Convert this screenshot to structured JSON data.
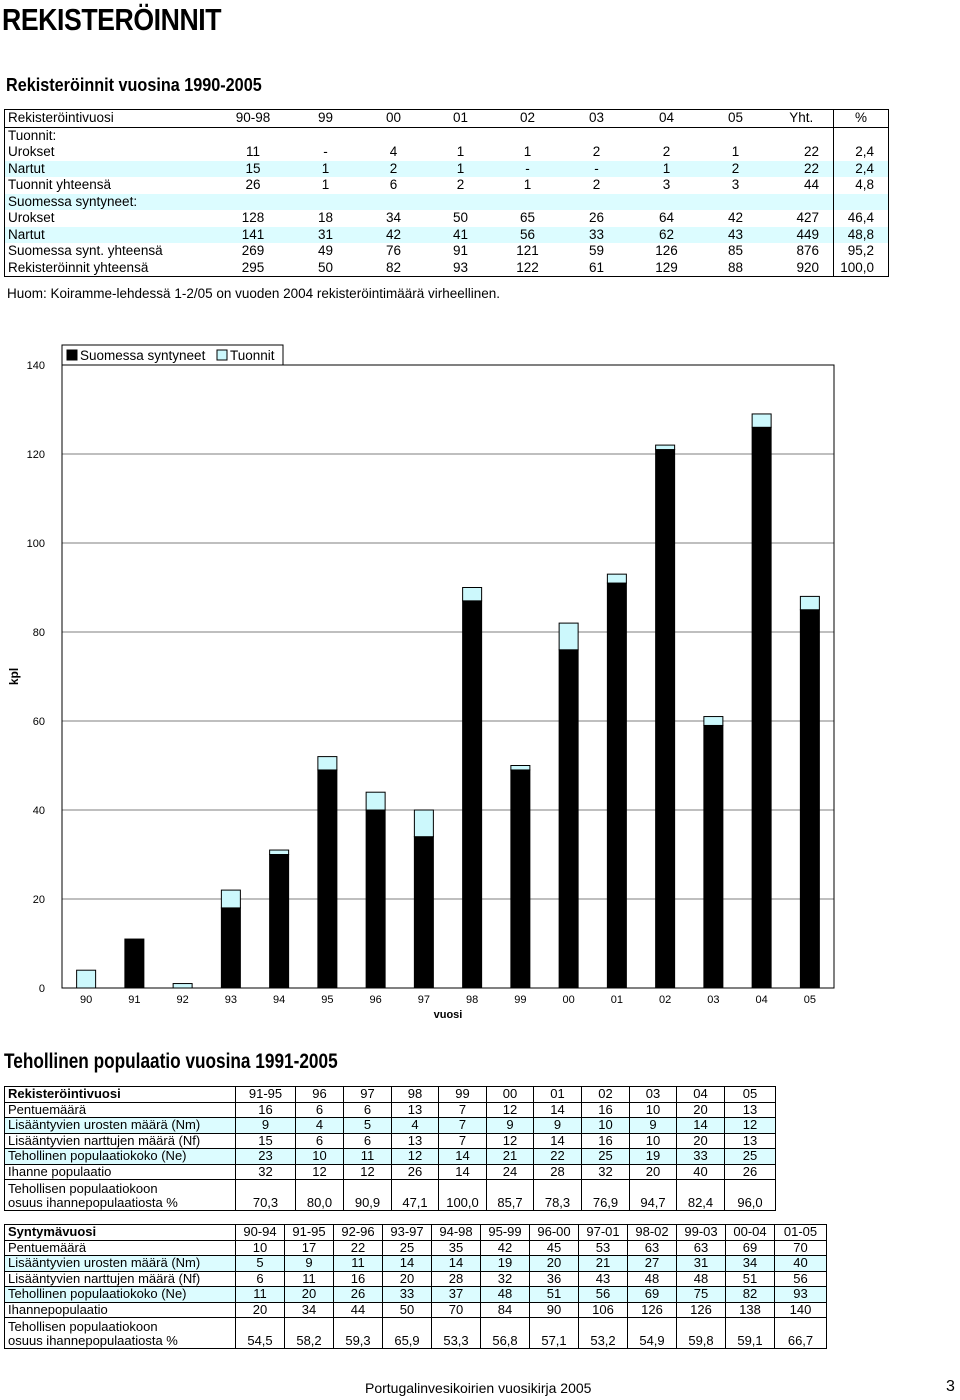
{
  "page": {
    "title": "REKISTERÖINNIT",
    "section1_title": "Rekisteröinnit vuosina 1990-2005",
    "section2_title": "Tehollinen populaatio vuosina 1991-2005",
    "note": "Huom: Koiramme-lehdessä 1-2/05 on vuoden 2004 rekisteröintimäärä virheellinen.",
    "footer": "Portugalinvesikoirien vuosikirja 2005",
    "page_number": "3"
  },
  "registrations": {
    "header": [
      "Rekisteröintivuosi",
      "90-98",
      "99",
      "00",
      "01",
      "02",
      "03",
      "04",
      "05",
      "Yht.",
      "%"
    ],
    "rows": [
      {
        "label": "Tuonnit:",
        "values": [],
        "tint": false
      },
      {
        "label": "Urokset",
        "values": [
          "11",
          "-",
          "4",
          "1",
          "1",
          "2",
          "2",
          "1",
          "22",
          "2,4"
        ],
        "tint": false
      },
      {
        "label": "Nartut",
        "values": [
          "15",
          "1",
          "2",
          "1",
          "-",
          "-",
          "1",
          "2",
          "22",
          "2,4"
        ],
        "tint": true
      },
      {
        "label": "Tuonnit yhteensä",
        "values": [
          "26",
          "1",
          "6",
          "2",
          "1",
          "2",
          "3",
          "3",
          "44",
          "4,8"
        ],
        "tint": false
      },
      {
        "label": "Suomessa syntyneet:",
        "values": [],
        "tint": true
      },
      {
        "label": "Urokset",
        "values": [
          "128",
          "18",
          "34",
          "50",
          "65",
          "26",
          "64",
          "42",
          "427",
          "46,4"
        ],
        "tint": false
      },
      {
        "label": "Nartut",
        "values": [
          "141",
          "31",
          "42",
          "41",
          "56",
          "33",
          "62",
          "43",
          "449",
          "48,8"
        ],
        "tint": true
      },
      {
        "label": "Suomessa synt. yhteensä",
        "values": [
          "269",
          "49",
          "76",
          "91",
          "121",
          "59",
          "126",
          "85",
          "876",
          "95,2"
        ],
        "tint": false
      },
      {
        "label": "Rekisteröinnit yhteensä",
        "values": [
          "295",
          "50",
          "82",
          "93",
          "122",
          "61",
          "129",
          "88",
          "920",
          "100,0"
        ],
        "tint": false
      }
    ]
  },
  "pop1": {
    "header": [
      "Rekisteröintivuosi",
      "91-95",
      "96",
      "97",
      "98",
      "99",
      "00",
      "01",
      "02",
      "03",
      "04",
      "05"
    ],
    "rows": [
      {
        "label": [
          "Pentuemäärä"
        ],
        "values": [
          "16",
          "6",
          "6",
          "13",
          "7",
          "12",
          "14",
          "16",
          "10",
          "20",
          "13"
        ],
        "tint": false
      },
      {
        "label": [
          "Lisääntyvien urosten määrä (Nm)"
        ],
        "values": [
          "9",
          "4",
          "5",
          "4",
          "7",
          "9",
          "9",
          "10",
          "9",
          "14",
          "12"
        ],
        "tint": true
      },
      {
        "label": [
          "Lisääntyvien narttujen määrä (Nf)"
        ],
        "values": [
          "15",
          "6",
          "6",
          "13",
          "7",
          "12",
          "14",
          "16",
          "10",
          "20",
          "13"
        ],
        "tint": false
      },
      {
        "label": [
          "Tehollinen populaatiokoko (Ne)"
        ],
        "values": [
          "23",
          "10",
          "11",
          "12",
          "14",
          "21",
          "22",
          "25",
          "19",
          "33",
          "25"
        ],
        "tint": true
      },
      {
        "label": [
          "Ihanne populaatio"
        ],
        "values": [
          "32",
          "12",
          "12",
          "26",
          "14",
          "24",
          "28",
          "32",
          "20",
          "40",
          "26"
        ],
        "tint": false
      },
      {
        "label": [
          "Tehollisen populaatiokoon",
          "osuus ihannepopulaatiosta %"
        ],
        "values": [
          "70,3",
          "80,0",
          "90,9",
          "47,1",
          "100,0",
          "85,7",
          "78,3",
          "76,9",
          "94,7",
          "82,4",
          "96,0"
        ],
        "tint": false
      }
    ]
  },
  "pop2": {
    "header": [
      "Syntymävuosi",
      "90-94",
      "91-95",
      "92-96",
      "93-97",
      "94-98",
      "95-99",
      "96-00",
      "97-01",
      "98-02",
      "99-03",
      "00-04",
      "01-05"
    ],
    "rows": [
      {
        "label": [
          "Pentuemäärä"
        ],
        "values": [
          "10",
          "17",
          "22",
          "25",
          "35",
          "42",
          "45",
          "53",
          "63",
          "63",
          "69",
          "70"
        ],
        "tint": false
      },
      {
        "label": [
          "Lisääntyvien urosten määrä (Nm)"
        ],
        "values": [
          "5",
          "9",
          "11",
          "14",
          "14",
          "19",
          "20",
          "21",
          "27",
          "31",
          "34",
          "40"
        ],
        "tint": true
      },
      {
        "label": [
          "Lisääntyvien narttujen määrä (Nf)"
        ],
        "values": [
          "6",
          "11",
          "16",
          "20",
          "28",
          "32",
          "36",
          "43",
          "48",
          "48",
          "51",
          "56"
        ],
        "tint": false
      },
      {
        "label": [
          "Tehollinen populaatiokoko (Ne)"
        ],
        "values": [
          "11",
          "20",
          "26",
          "33",
          "37",
          "48",
          "51",
          "56",
          "69",
          "75",
          "82",
          "93"
        ],
        "tint": true
      },
      {
        "label": [
          "Ihannepopulaatio"
        ],
        "values": [
          "20",
          "34",
          "44",
          "50",
          "70",
          "84",
          "90",
          "106",
          "126",
          "126",
          "138",
          "140"
        ],
        "tint": false
      },
      {
        "label": [
          "Tehollisen populaatiokoon",
          "osuus ihannepopulaatiosta %"
        ],
        "values": [
          "54,5",
          "58,2",
          "59,3",
          "65,9",
          "53,3",
          "56,8",
          "57,1",
          "53,2",
          "54,9",
          "59,8",
          "59,1",
          "66,7"
        ],
        "tint": false
      }
    ]
  },
  "chart_data": {
    "type": "bar",
    "stacked": true,
    "categories": [
      "90",
      "91",
      "92",
      "93",
      "94",
      "95",
      "96",
      "97",
      "98",
      "99",
      "00",
      "01",
      "02",
      "03",
      "04",
      "05"
    ],
    "series": [
      {
        "name": "Suomessa syntyneet",
        "values": [
          0,
          11,
          0,
          18,
          30,
          49,
          40,
          34,
          87,
          49,
          76,
          91,
          121,
          59,
          126,
          85
        ]
      },
      {
        "name": "Tuonnit",
        "values": [
          4,
          0,
          1,
          4,
          1,
          3,
          4,
          6,
          3,
          1,
          6,
          2,
          1,
          2,
          3,
          3
        ]
      }
    ],
    "xlabel": "vuosi",
    "ylabel": "kpl",
    "ylim": [
      0,
      140
    ],
    "yticks": [
      "0",
      "20",
      "40",
      "60",
      "80",
      "100",
      "120",
      "140"
    ],
    "legend_position": "top-left",
    "colors": {
      "Suomessa syntyneet": "#000000",
      "Tuonnit": "#ccf8fc"
    }
  }
}
